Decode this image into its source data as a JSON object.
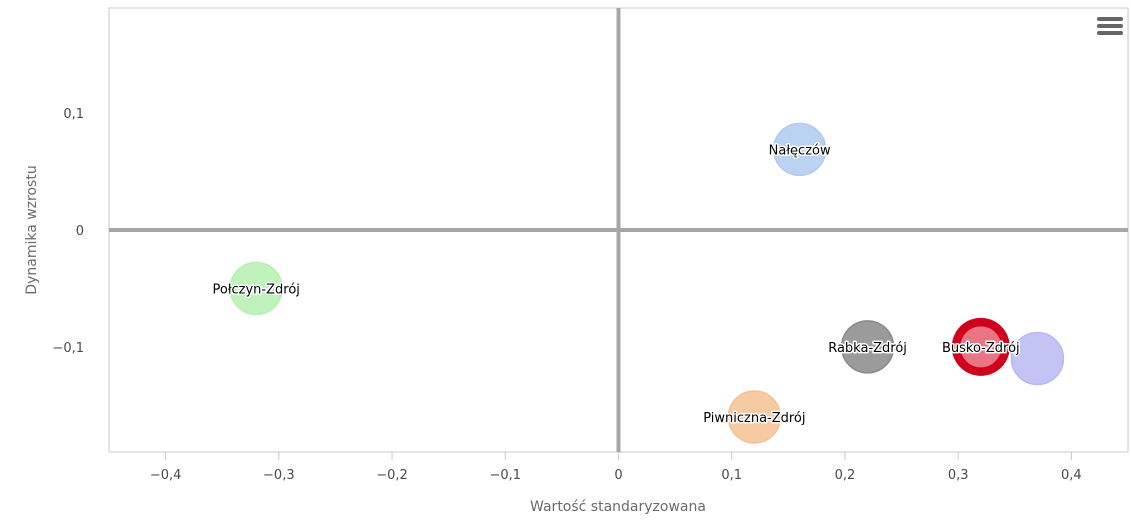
{
  "chart_data": {
    "type": "bubble",
    "xlabel": "Wartość standaryzowana",
    "ylabel": "Dynamika wzrostu",
    "xlim": [
      -0.45,
      0.45
    ],
    "ylim": [
      -0.19,
      0.19
    ],
    "x_ticks": [
      {
        "value": -0.4,
        "label": "−0,4"
      },
      {
        "value": -0.3,
        "label": "−0,3"
      },
      {
        "value": -0.2,
        "label": "−0,2"
      },
      {
        "value": -0.1,
        "label": "−0,1"
      },
      {
        "value": 0,
        "label": "0"
      },
      {
        "value": 0.1,
        "label": "0,1"
      },
      {
        "value": 0.2,
        "label": "0,2"
      },
      {
        "value": 0.3,
        "label": "0,3"
      },
      {
        "value": 0.4,
        "label": "0,4"
      }
    ],
    "y_ticks": [
      {
        "value": 0.1,
        "label": "0,1"
      },
      {
        "value": 0,
        "label": "0"
      },
      {
        "value": -0.1,
        "label": "−0,1"
      }
    ],
    "grid": false,
    "quadrant_lines_at_zero": true,
    "points": [
      {
        "label": "Nałęczów",
        "x": 0.16,
        "y": 0.069,
        "color": "#aecbf0"
      },
      {
        "label": "Połczyn-Zdrój",
        "x": -0.32,
        "y": -0.05,
        "color": "#b5f0b0"
      },
      {
        "label": "Rabka-Zdrój",
        "x": 0.22,
        "y": -0.1,
        "color": "#8a8a8a"
      },
      {
        "label": "Busko-Zdrój",
        "x": 0.32,
        "y": -0.1,
        "color": "#e87484",
        "highlight": "#d0021b"
      },
      {
        "label": "",
        "x": 0.37,
        "y": -0.11,
        "color": "#b9b8f2"
      },
      {
        "label": "Piwniczna-Zdrój",
        "x": 0.12,
        "y": -0.16,
        "color": "#f5c192"
      }
    ]
  },
  "menu": {
    "icon": "hamburger-menu-icon",
    "color": "#666666"
  }
}
